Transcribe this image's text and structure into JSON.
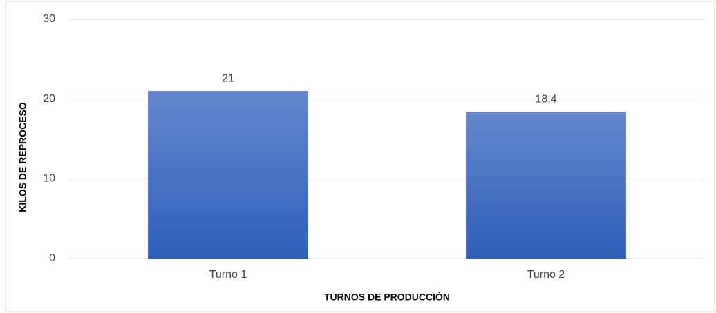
{
  "chart_data": {
    "type": "bar",
    "categories": [
      "Turno 1",
      "Turno 2"
    ],
    "values": [
      21,
      18.4
    ],
    "value_labels": [
      "21",
      "18,4"
    ],
    "color": "#2f5fbb",
    "ylim": [
      0,
      30
    ],
    "yticks": [
      0,
      10,
      20,
      30
    ],
    "grid": true,
    "x_label": "TURNOS DE PRODUCCIÓN",
    "y_label": "KILOS DE REPROCESO"
  }
}
